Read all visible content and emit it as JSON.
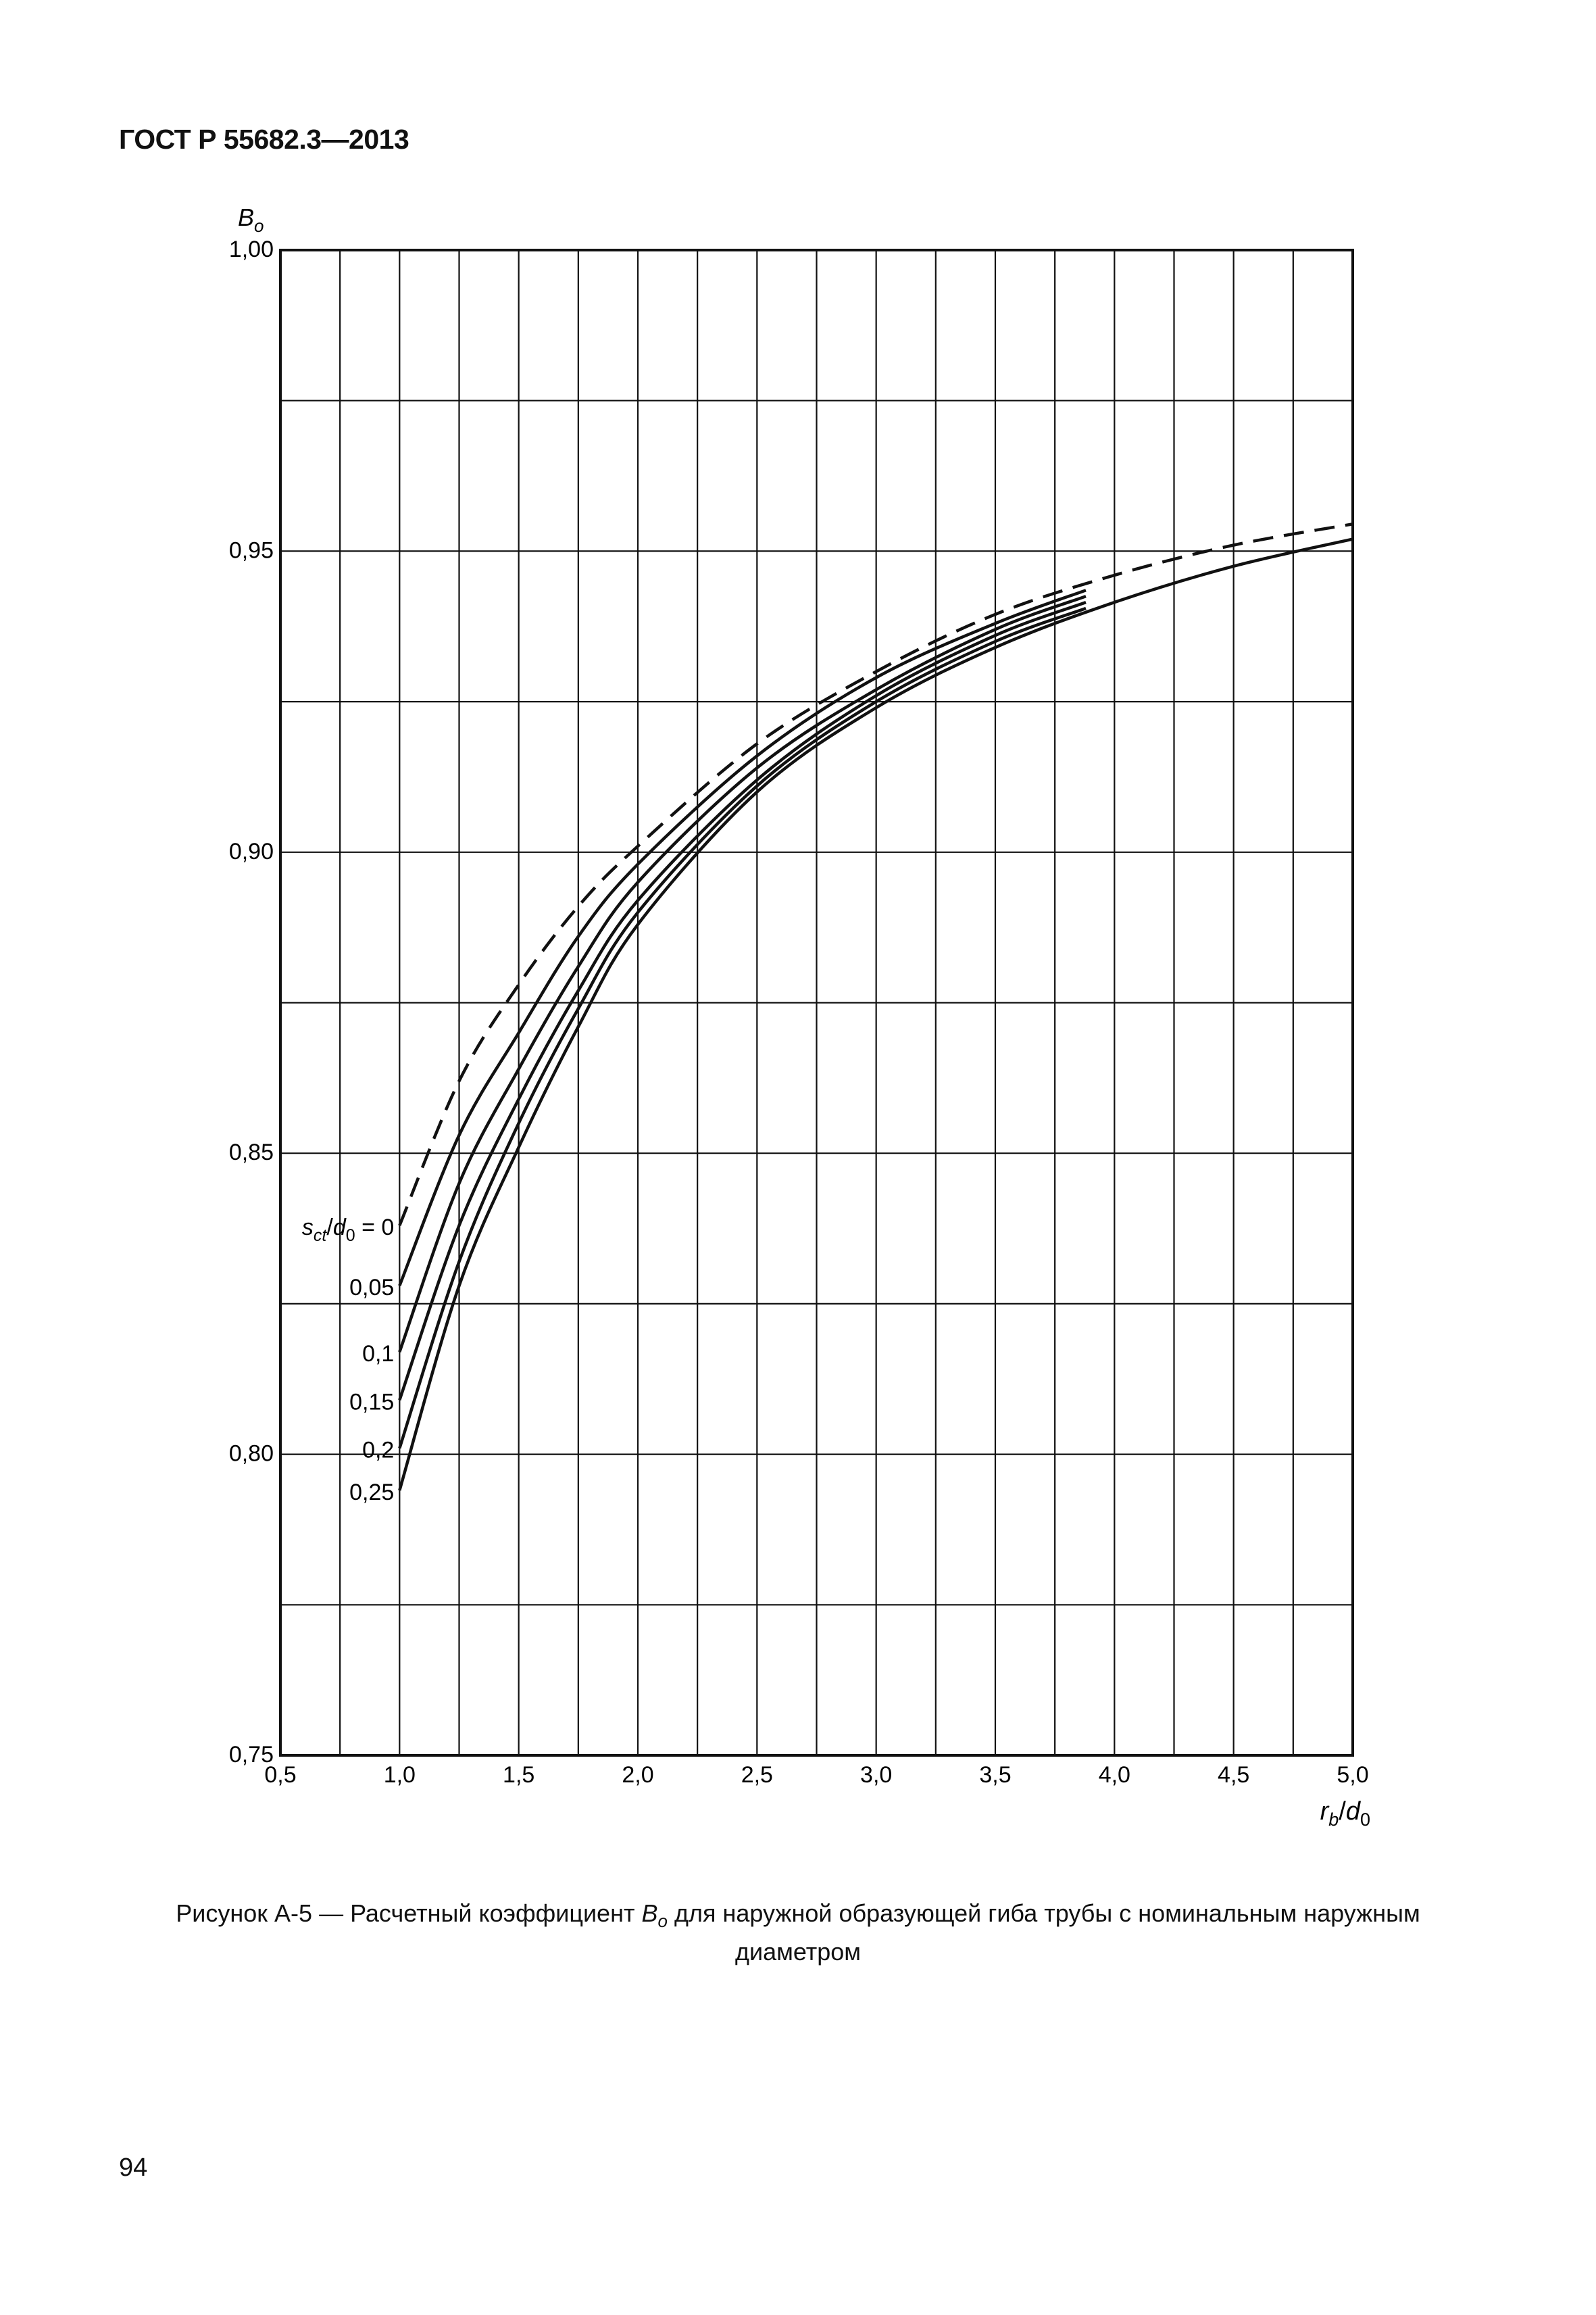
{
  "document": {
    "header": "ГОСТ Р 55682.3—2013",
    "caption_line1_before": "Рисунок А-5 — Расчетный коэффициент ",
    "caption_symbol_main": "B",
    "caption_symbol_sub": "o",
    "caption_line1_after": " для наружной образующей гиба трубы с номинальным наружным",
    "caption_line2": "диаметром",
    "page_number": "94"
  },
  "chart_data": {
    "type": "line",
    "title": "",
    "ylabel_main": "B",
    "ylabel_sub": "o",
    "xlabel_main": "r",
    "xlabel_sub1": "b",
    "xlabel_sep": "/",
    "xlabel_main2": "d",
    "xlabel_sub2": "0",
    "xlim": [
      0.5,
      5.0
    ],
    "ylim": [
      0.75,
      1.0
    ],
    "x_ticks": [
      0.5,
      1.0,
      1.5,
      2.0,
      2.5,
      3.0,
      3.5,
      4.0,
      4.5,
      5.0
    ],
    "x_tick_labels": [
      "0,5",
      "1,0",
      "1,5",
      "2,0",
      "2,5",
      "3,0",
      "3,5",
      "4,0",
      "4,5",
      "5,0"
    ],
    "y_ticks": [
      0.75,
      0.8,
      0.85,
      0.9,
      0.95,
      1.0
    ],
    "y_tick_labels": [
      "0,75",
      "0,80",
      "0,85",
      "0,90",
      "0,95",
      "1,00"
    ],
    "grid": {
      "x_step": 0.25,
      "y_step": 0.025
    },
    "param_prefix_main": "s",
    "param_prefix_sub1": "ct",
    "param_prefix_sep": "/",
    "param_prefix_main2": "d",
    "param_prefix_sub2": "0",
    "param_prefix_eq": " = ",
    "series": [
      {
        "label": "0",
        "dashed": true,
        "x": [
          1.0,
          1.25,
          1.5,
          1.75,
          2.0,
          2.5,
          3.0,
          3.5,
          4.0,
          4.5,
          5.0
        ],
        "y": [
          0.838,
          0.862,
          0.878,
          0.891,
          0.901,
          0.918,
          0.93,
          0.9395,
          0.946,
          0.951,
          0.9545
        ]
      },
      {
        "label": "0,05",
        "dashed": false,
        "x": [
          1.0,
          1.25,
          1.5,
          1.75,
          2.0,
          2.5,
          3.0,
          3.5,
          3.88
        ],
        "y": [
          0.828,
          0.853,
          0.87,
          0.886,
          0.898,
          0.916,
          0.929,
          0.938,
          0.9435
        ]
      },
      {
        "label": "0,1",
        "dashed": false,
        "x": [
          1.0,
          1.25,
          1.5,
          1.75,
          2.0,
          2.5,
          3.0,
          3.5,
          3.88
        ],
        "y": [
          0.817,
          0.845,
          0.864,
          0.881,
          0.895,
          0.914,
          0.927,
          0.937,
          0.9425
        ]
      },
      {
        "label": "0,15",
        "dashed": false,
        "x": [
          1.0,
          1.25,
          1.5,
          1.75,
          2.0,
          2.5,
          3.0,
          3.5,
          3.88
        ],
        "y": [
          0.809,
          0.838,
          0.859,
          0.877,
          0.892,
          0.912,
          0.926,
          0.936,
          0.9415
        ]
      },
      {
        "label": "0,2",
        "dashed": false,
        "x": [
          1.0,
          1.25,
          1.5,
          1.75,
          2.0,
          2.5,
          3.0,
          3.5,
          3.88
        ],
        "y": [
          0.801,
          0.832,
          0.855,
          0.874,
          0.89,
          0.911,
          0.925,
          0.935,
          0.9405
        ]
      },
      {
        "label": "0,25",
        "dashed": false,
        "x": [
          1.0,
          1.25,
          1.5,
          1.75,
          2.0,
          2.5,
          3.0,
          3.5,
          4.0,
          4.5,
          5.0
        ],
        "y": [
          0.794,
          0.828,
          0.851,
          0.871,
          0.888,
          0.91,
          0.924,
          0.934,
          0.9415,
          0.9475,
          0.952
        ]
      }
    ]
  }
}
